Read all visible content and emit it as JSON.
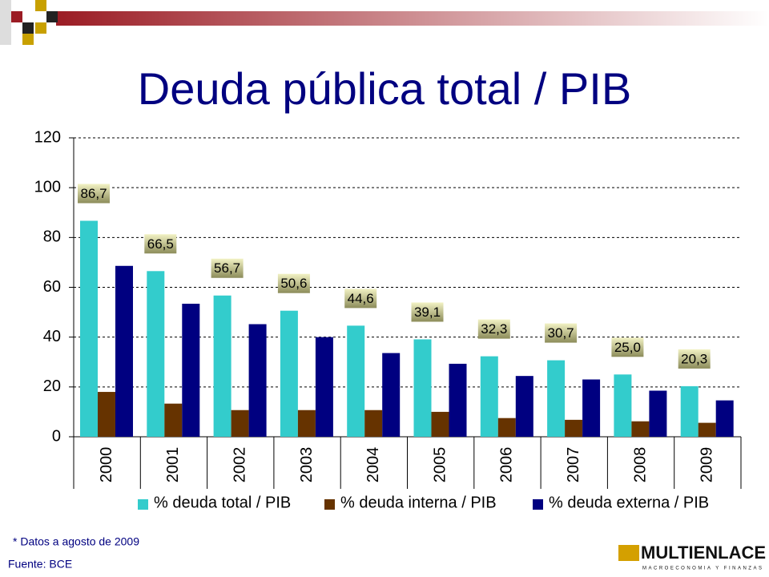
{
  "chart_data": {
    "type": "bar",
    "title": "Deuda pública total / PIB",
    "categories": [
      "2000",
      "2001",
      "2002",
      "2003",
      "2004",
      "2005",
      "2006",
      "2007",
      "2008",
      "2009"
    ],
    "series": [
      {
        "name": "% deuda total / PIB",
        "color": "#33cccc",
        "values": [
          86.7,
          66.5,
          56.7,
          50.6,
          44.6,
          39.1,
          32.3,
          30.7,
          25.0,
          20.3
        ],
        "value_labels": [
          "86,7",
          "66,5",
          "56,7",
          "50,6",
          "44,6",
          "39,1",
          "32,3",
          "30,7",
          "25,0",
          "20,3"
        ]
      },
      {
        "name": "% deuda interna / PIB",
        "color": "#663300",
        "values": [
          18,
          13.3,
          10.7,
          10.7,
          10.7,
          10,
          7.5,
          6.8,
          6.2,
          5.6
        ]
      },
      {
        "name": "% deuda externa / PIB",
        "color": "#000080",
        "values": [
          68.6,
          53.4,
          45.2,
          40,
          33.6,
          29.3,
          24.4,
          23,
          18.5,
          14.6
        ]
      }
    ],
    "ylim": [
      0,
      120
    ],
    "yticks": [
      0,
      20,
      40,
      60,
      80,
      100,
      120
    ],
    "grid": true,
    "legend": "bottom"
  },
  "footnote": "* Datos a agosto de 2009",
  "source": "Fuente: BCE",
  "logo": {
    "name": "MULTIENLACE",
    "tagline": "MACROECONOMIA Y FINANZAS"
  }
}
